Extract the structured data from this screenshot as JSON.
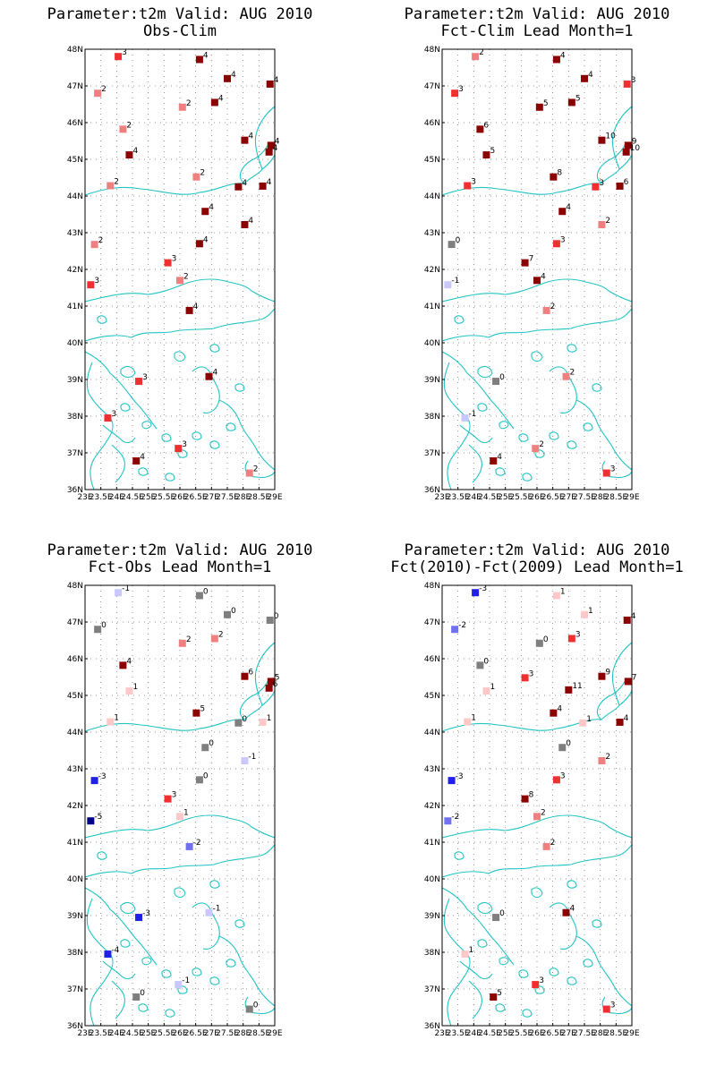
{
  "axes": {
    "lat_min": 36,
    "lat_max": 48,
    "lon_min": 23,
    "lon_max": 29,
    "lat_ticks": [
      "36N",
      "37N",
      "38N",
      "39N",
      "40N",
      "41N",
      "42N",
      "43N",
      "44N",
      "45N",
      "46N",
      "47N",
      "48N"
    ],
    "lon_ticks": [
      "23E",
      "23.5E",
      "24E",
      "24.5E",
      "25E",
      "25.5E",
      "26E",
      "26.5E",
      "27E",
      "27.5E",
      "28E",
      "28.5E",
      "29E"
    ]
  },
  "colors": {
    "coast": "#22c3c3",
    "neg": [
      "#00008b",
      "#2020e6",
      "#7070f0",
      "#c8c8ff"
    ],
    "zero": "#7f7f7f",
    "pos": [
      "#ffc8c8",
      "#f08080",
      "#f03030",
      "#8b0000"
    ]
  },
  "chart_data": [
    {
      "type": "map",
      "title_line1": "Parameter:t2m Valid: AUG 2010",
      "title_line2": "Obs-Clim",
      "stations": [
        {
          "lon": 24.05,
          "lat": 47.8,
          "v": "3"
        },
        {
          "lon": 26.62,
          "lat": 47.72,
          "v": "4"
        },
        {
          "lon": 27.5,
          "lat": 47.2,
          "v": "4"
        },
        {
          "lon": 28.85,
          "lat": 47.05,
          "v": "4"
        },
        {
          "lon": 23.4,
          "lat": 46.8,
          "v": "2"
        },
        {
          "lon": 27.1,
          "lat": 46.55,
          "v": "4"
        },
        {
          "lon": 26.08,
          "lat": 46.42,
          "v": "2"
        },
        {
          "lon": 24.2,
          "lat": 45.82,
          "v": "2"
        },
        {
          "lon": 28.05,
          "lat": 45.52,
          "v": "4"
        },
        {
          "lon": 28.88,
          "lat": 45.38,
          "v": "4"
        },
        {
          "lon": 28.82,
          "lat": 45.2,
          "v": "4"
        },
        {
          "lon": 24.4,
          "lat": 45.12,
          "v": "4"
        },
        {
          "lon": 26.52,
          "lat": 44.52,
          "v": "2"
        },
        {
          "lon": 23.8,
          "lat": 44.28,
          "v": "2"
        },
        {
          "lon": 27.85,
          "lat": 44.25,
          "v": "4"
        },
        {
          "lon": 28.62,
          "lat": 44.27,
          "v": "4"
        },
        {
          "lon": 26.8,
          "lat": 43.58,
          "v": "4"
        },
        {
          "lon": 28.05,
          "lat": 43.22,
          "v": "4"
        },
        {
          "lon": 23.3,
          "lat": 42.68,
          "v": "2"
        },
        {
          "lon": 26.62,
          "lat": 42.7,
          "v": "4"
        },
        {
          "lon": 25.62,
          "lat": 42.18,
          "v": "3"
        },
        {
          "lon": 26.0,
          "lat": 41.7,
          "v": "2"
        },
        {
          "lon": 23.18,
          "lat": 41.58,
          "v": "3"
        },
        {
          "lon": 26.3,
          "lat": 40.88,
          "v": "4"
        },
        {
          "lon": 24.7,
          "lat": 38.95,
          "v": "3"
        },
        {
          "lon": 26.92,
          "lat": 39.08,
          "v": "4"
        },
        {
          "lon": 23.72,
          "lat": 37.95,
          "v": "3"
        },
        {
          "lon": 25.95,
          "lat": 37.12,
          "v": "3"
        },
        {
          "lon": 24.62,
          "lat": 36.78,
          "v": "4"
        },
        {
          "lon": 28.2,
          "lat": 36.45,
          "v": "2"
        }
      ]
    },
    {
      "type": "map",
      "title_line1": "Parameter:t2m Valid: AUG 2010",
      "title_line2": "Fct-Clim Lead Month=1",
      "stations": [
        {
          "lon": 24.05,
          "lat": 47.8,
          "v": "2"
        },
        {
          "lon": 26.62,
          "lat": 47.72,
          "v": "4"
        },
        {
          "lon": 27.5,
          "lat": 47.2,
          "v": "4"
        },
        {
          "lon": 28.85,
          "lat": 47.05,
          "v": "3"
        },
        {
          "lon": 23.4,
          "lat": 46.8,
          "v": "3"
        },
        {
          "lon": 27.1,
          "lat": 46.55,
          "v": "5"
        },
        {
          "lon": 26.08,
          "lat": 46.42,
          "v": "5"
        },
        {
          "lon": 24.2,
          "lat": 45.82,
          "v": "6"
        },
        {
          "lon": 28.05,
          "lat": 45.52,
          "v": "10"
        },
        {
          "lon": 28.88,
          "lat": 45.38,
          "v": "9"
        },
        {
          "lon": 28.82,
          "lat": 45.2,
          "v": "10"
        },
        {
          "lon": 24.4,
          "lat": 45.12,
          "v": "5"
        },
        {
          "lon": 26.52,
          "lat": 44.52,
          "v": "8"
        },
        {
          "lon": 23.8,
          "lat": 44.28,
          "v": "3"
        },
        {
          "lon": 27.85,
          "lat": 44.25,
          "v": "3"
        },
        {
          "lon": 28.62,
          "lat": 44.27,
          "v": "6"
        },
        {
          "lon": 26.8,
          "lat": 43.58,
          "v": "4"
        },
        {
          "lon": 28.05,
          "lat": 43.22,
          "v": "2"
        },
        {
          "lon": 23.3,
          "lat": 42.68,
          "v": "0"
        },
        {
          "lon": 26.62,
          "lat": 42.7,
          "v": "3"
        },
        {
          "lon": 25.62,
          "lat": 42.18,
          "v": "7"
        },
        {
          "lon": 26.0,
          "lat": 41.7,
          "v": "4"
        },
        {
          "lon": 23.18,
          "lat": 41.58,
          "v": "-1"
        },
        {
          "lon": 26.3,
          "lat": 40.88,
          "v": "2"
        },
        {
          "lon": 24.7,
          "lat": 38.95,
          "v": "0"
        },
        {
          "lon": 26.92,
          "lat": 39.08,
          "v": "2"
        },
        {
          "lon": 23.72,
          "lat": 37.95,
          "v": "-1"
        },
        {
          "lon": 25.95,
          "lat": 37.12,
          "v": "2"
        },
        {
          "lon": 24.62,
          "lat": 36.78,
          "v": "4"
        },
        {
          "lon": 28.2,
          "lat": 36.45,
          "v": "3"
        }
      ]
    },
    {
      "type": "map",
      "title_line1": "Parameter:t2m Valid: AUG 2010",
      "title_line2": "Fct-Obs Lead Month=1",
      "stations": [
        {
          "lon": 24.05,
          "lat": 47.8,
          "v": "-1"
        },
        {
          "lon": 26.62,
          "lat": 47.72,
          "v": "0"
        },
        {
          "lon": 27.5,
          "lat": 47.2,
          "v": "0"
        },
        {
          "lon": 28.85,
          "lat": 47.05,
          "v": "0"
        },
        {
          "lon": 23.4,
          "lat": 46.8,
          "v": "0"
        },
        {
          "lon": 27.1,
          "lat": 46.55,
          "v": "2"
        },
        {
          "lon": 26.08,
          "lat": 46.42,
          "v": "2"
        },
        {
          "lon": 24.2,
          "lat": 45.82,
          "v": "4"
        },
        {
          "lon": 28.05,
          "lat": 45.52,
          "v": "6"
        },
        {
          "lon": 28.88,
          "lat": 45.38,
          "v": "5"
        },
        {
          "lon": 28.82,
          "lat": 45.2,
          "v": "6"
        },
        {
          "lon": 24.4,
          "lat": 45.12,
          "v": "1"
        },
        {
          "lon": 26.52,
          "lat": 44.52,
          "v": "5"
        },
        {
          "lon": 23.8,
          "lat": 44.28,
          "v": "1"
        },
        {
          "lon": 27.85,
          "lat": 44.25,
          "v": "0"
        },
        {
          "lon": 28.62,
          "lat": 44.27,
          "v": "1"
        },
        {
          "lon": 26.8,
          "lat": 43.58,
          "v": "0"
        },
        {
          "lon": 28.05,
          "lat": 43.22,
          "v": "-1"
        },
        {
          "lon": 23.3,
          "lat": 42.68,
          "v": "-3"
        },
        {
          "lon": 26.62,
          "lat": 42.7,
          "v": "0"
        },
        {
          "lon": 25.62,
          "lat": 42.18,
          "v": "3"
        },
        {
          "lon": 26.0,
          "lat": 41.7,
          "v": "1"
        },
        {
          "lon": 23.18,
          "lat": 41.58,
          "v": "-5"
        },
        {
          "lon": 26.3,
          "lat": 40.88,
          "v": "-2"
        },
        {
          "lon": 24.7,
          "lat": 38.95,
          "v": "-3"
        },
        {
          "lon": 26.92,
          "lat": 39.08,
          "v": "-1"
        },
        {
          "lon": 23.72,
          "lat": 37.95,
          "v": "-4"
        },
        {
          "lon": 25.95,
          "lat": 37.12,
          "v": "-1"
        },
        {
          "lon": 24.62,
          "lat": 36.78,
          "v": "0"
        },
        {
          "lon": 28.2,
          "lat": 36.45,
          "v": "0"
        }
      ]
    },
    {
      "type": "map",
      "title_line1": "Parameter:t2m Valid: AUG 2010",
      "title_line2": "Fct(2010)-Fct(2009) Lead Month=1",
      "stations": [
        {
          "lon": 24.05,
          "lat": 47.8,
          "v": "-3"
        },
        {
          "lon": 26.62,
          "lat": 47.72,
          "v": "1"
        },
        {
          "lon": 27.5,
          "lat": 47.2,
          "v": "1"
        },
        {
          "lon": 28.85,
          "lat": 47.05,
          "v": "4"
        },
        {
          "lon": 23.4,
          "lat": 46.8,
          "v": "-2"
        },
        {
          "lon": 27.1,
          "lat": 46.55,
          "v": "3"
        },
        {
          "lon": 26.08,
          "lat": 46.42,
          "v": "0"
        },
        {
          "lon": 24.2,
          "lat": 45.82,
          "v": "0"
        },
        {
          "lon": 28.05,
          "lat": 45.52,
          "v": "9"
        },
        {
          "lon": 28.88,
          "lat": 45.38,
          "v": "7"
        },
        {
          "lon": 25.62,
          "lat": 45.48,
          "v": "3"
        },
        {
          "lon": 24.4,
          "lat": 45.12,
          "v": "1"
        },
        {
          "lon": 27.0,
          "lat": 45.15,
          "v": "11"
        },
        {
          "lon": 26.52,
          "lat": 44.52,
          "v": "4"
        },
        {
          "lon": 23.8,
          "lat": 44.28,
          "v": "1"
        },
        {
          "lon": 27.45,
          "lat": 44.25,
          "v": "1"
        },
        {
          "lon": 28.62,
          "lat": 44.27,
          "v": "4"
        },
        {
          "lon": 26.8,
          "lat": 43.58,
          "v": "0"
        },
        {
          "lon": 28.05,
          "lat": 43.22,
          "v": "2"
        },
        {
          "lon": 23.3,
          "lat": 42.68,
          "v": "-3"
        },
        {
          "lon": 26.62,
          "lat": 42.7,
          "v": "3"
        },
        {
          "lon": 25.62,
          "lat": 42.18,
          "v": "8"
        },
        {
          "lon": 26.0,
          "lat": 41.7,
          "v": "2"
        },
        {
          "lon": 23.18,
          "lat": 41.58,
          "v": "-2"
        },
        {
          "lon": 26.3,
          "lat": 40.88,
          "v": "2"
        },
        {
          "lon": 24.7,
          "lat": 38.95,
          "v": "0"
        },
        {
          "lon": 26.92,
          "lat": 39.08,
          "v": "4"
        },
        {
          "lon": 23.72,
          "lat": 37.95,
          "v": "1"
        },
        {
          "lon": 25.95,
          "lat": 37.12,
          "v": "3"
        },
        {
          "lon": 24.62,
          "lat": 36.78,
          "v": "5"
        },
        {
          "lon": 28.2,
          "lat": 36.45,
          "v": "3"
        }
      ]
    }
  ]
}
